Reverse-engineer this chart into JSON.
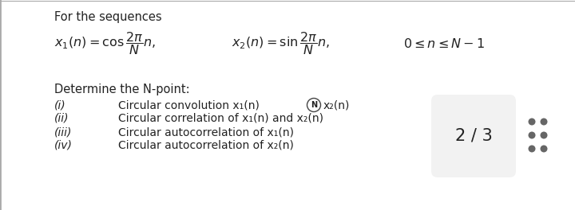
{
  "bg_color": "#ffffff",
  "border_color": "#aaaaaa",
  "title_text": "For the sequences",
  "determine_text": "Determine the N-point:",
  "page_text": "2 / 3",
  "dot_color": "#666666",
  "title_fontsize": 10.5,
  "body_fontsize": 10.0,
  "formula_fontsize": 11.5,
  "items": [
    [
      "(i)",
      "Circular convolution x₁(n)",
      true,
      "x₂(n)"
    ],
    [
      "(ii)",
      "Circular correlation of x₁(n) and x₂(n)",
      false,
      ""
    ],
    [
      "(iii)",
      "Circular autocorrelation of x₁(n)",
      false,
      ""
    ],
    [
      "(iv)",
      "Circular autocorrelation of x₂(n)",
      false,
      ""
    ]
  ]
}
